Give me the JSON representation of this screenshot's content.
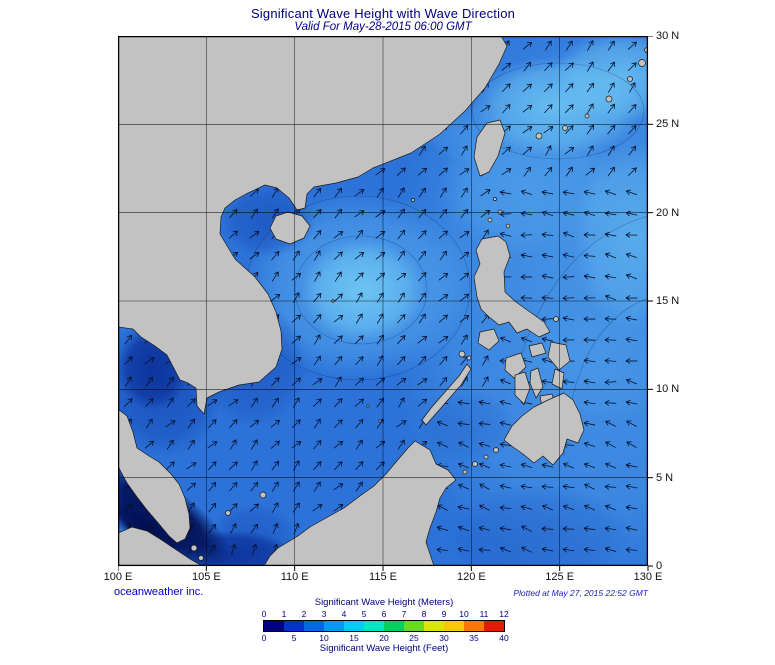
{
  "header": {
    "title": "Significant Wave Height with Wave Direction",
    "subtitle": "Valid For May-28-2015 06:00 GMT"
  },
  "axes": {
    "lon": [
      "100 E",
      "105 E",
      "110 E",
      "115 E",
      "120 E",
      "125 E",
      "130 E"
    ],
    "lat": [
      "30 N",
      "25 N",
      "20 N",
      "15 N",
      "10 N",
      "5 N",
      "0"
    ]
  },
  "footer": {
    "brand": "oceanweather inc.",
    "plotted": "Plotted at May 27, 2015 22:52 GMT"
  },
  "legend": {
    "meters_title": "Significant Wave Height (Meters)",
    "feet_title": "Significant Wave Height (Feet)",
    "meters_ticks": [
      "0",
      "1",
      "2",
      "3",
      "4",
      "5",
      "6",
      "7",
      "8",
      "9",
      "10",
      "11",
      "12"
    ],
    "feet_ticks": [
      "0",
      "5",
      "10",
      "15",
      "20",
      "25",
      "30",
      "35",
      "40"
    ],
    "colors": [
      "#000080",
      "#0033CC",
      "#0066E8",
      "#0099F0",
      "#00CCF4",
      "#00E8C0",
      "#00D060",
      "#66DC20",
      "#D8E800",
      "#F8C800",
      "#F87800",
      "#E81800"
    ]
  },
  "map": {
    "land_color": "#C2C2C2",
    "ocean_base": "#2C72D8",
    "arrow_color": "#06122e",
    "title_color": "#000080"
  }
}
